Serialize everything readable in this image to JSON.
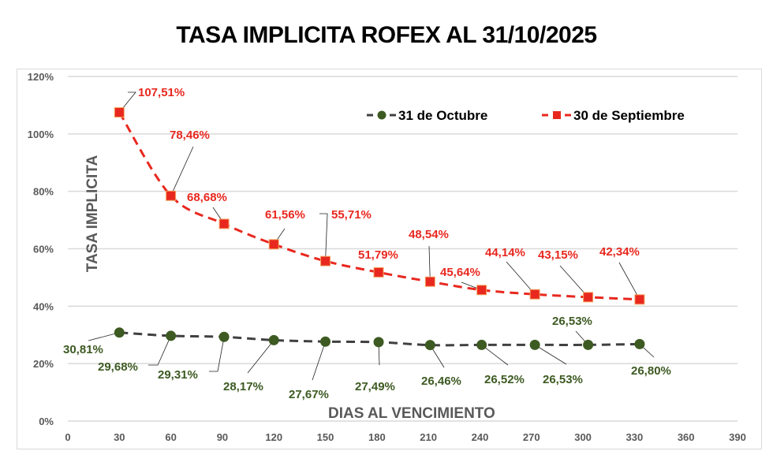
{
  "title": "TASA IMPLICITA ROFEX AL 31/10/2025",
  "colors": {
    "red": "#e8281f",
    "green": "#3d5a22",
    "dark_line": "#404040",
    "grid": "#d9d9d9",
    "axis_text": "#595959"
  },
  "chart_data": {
    "type": "line",
    "title": "TASA IMPLICITA ROFEX AL 31/10/2025",
    "xlabel": "DIAS AL VENCIMIENTO",
    "ylabel": "TASA IMPLICITA",
    "xlim": [
      0,
      390
    ],
    "ylim": [
      0,
      120
    ],
    "x_ticks": [
      0,
      30,
      60,
      90,
      120,
      150,
      180,
      210,
      240,
      270,
      300,
      330,
      360,
      390
    ],
    "y_ticks": [
      "0%",
      "20%",
      "40%",
      "60%",
      "80%",
      "100%",
      "120%"
    ],
    "grid": true,
    "legend_position": "top-right",
    "series": [
      {
        "name": "31 de Octubre",
        "marker": "circle",
        "color": "#3d5a22",
        "x": [
          30,
          60,
          91,
          120,
          150,
          181,
          211,
          241,
          272,
          303,
          333
        ],
        "values": [
          30.81,
          29.68,
          29.31,
          28.17,
          27.67,
          27.49,
          26.46,
          26.52,
          26.53,
          26.53,
          26.8
        ],
        "labels": [
          "30,81%",
          "29,68%",
          "29,31%",
          "28,17%",
          "27,67%",
          "27,49%",
          "26,46%",
          "26,52%",
          "26,53%",
          "26,53%",
          "26,80%"
        ]
      },
      {
        "name": "30 de Septiembre",
        "marker": "square",
        "color": "#e8281f",
        "x": [
          30,
          60,
          91,
          120,
          150,
          181,
          211,
          241,
          272,
          303,
          333
        ],
        "values": [
          107.51,
          78.46,
          68.68,
          61.56,
          55.71,
          51.79,
          48.54,
          45.64,
          44.14,
          43.15,
          42.34
        ],
        "labels": [
          "107,51%",
          "78,46%",
          "68,68%",
          "61,56%",
          "55,71%",
          "51,79%",
          "48,54%",
          "45,64%",
          "44,14%",
          "43,15%",
          "42,34%"
        ]
      }
    ]
  }
}
